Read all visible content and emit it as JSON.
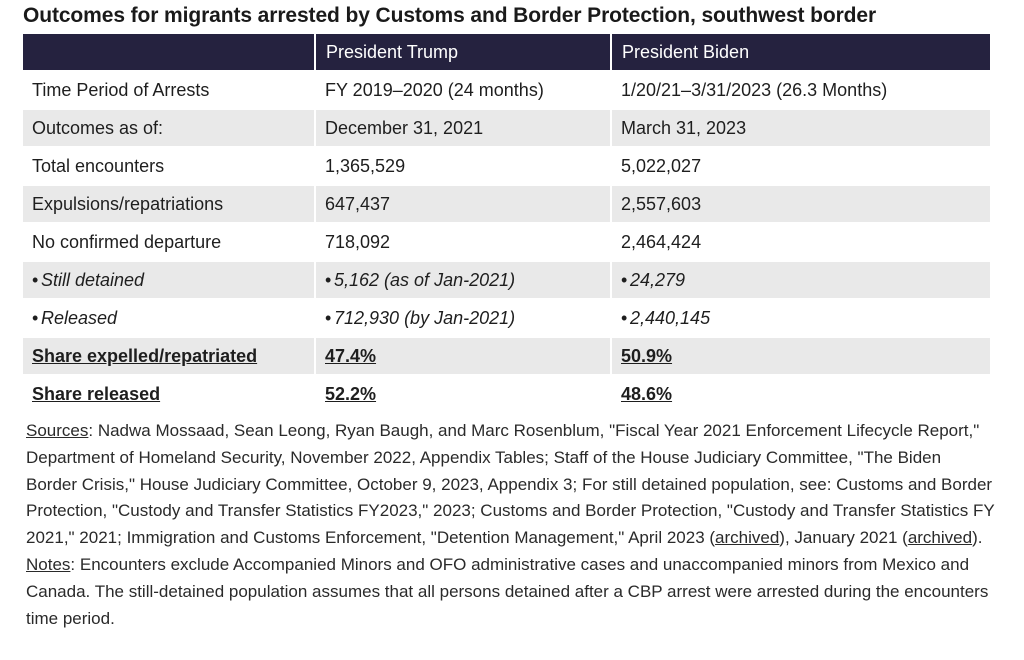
{
  "title": "Outcomes for migrants arrested by Customs and Border Protection, southwest border",
  "table": {
    "headers": [
      "",
      "President Trump",
      "President Biden"
    ],
    "rows": [
      {
        "label": "Time Period of Arrests",
        "trump": "FY 2019–2020 (24 months)",
        "biden": "1/20/21–3/31/2023 (26.3 Months)"
      },
      {
        "label": "Outcomes as of:",
        "trump": "December 31, 2021",
        "biden": "March 31, 2023"
      },
      {
        "label": "Total encounters",
        "trump": "1,365,529",
        "biden": "5,022,027"
      },
      {
        "label": "Expulsions/repatriations",
        "trump": "647,437",
        "biden": "2,557,603"
      },
      {
        "label": "No confirmed departure",
        "trump": "718,092",
        "biden": "2,464,424"
      },
      {
        "label": "Still detained",
        "trump": "5,162 (as of Jan-2021)",
        "biden": "24,279"
      },
      {
        "label": "Released",
        "trump": "712,930 (by Jan-2021)",
        "biden": "2,440,145"
      },
      {
        "label": "Share expelled/repatriated",
        "trump": "47.4%",
        "biden": "50.9%"
      },
      {
        "label": "Share released",
        "trump": "52.2%",
        "biden": "48.6%"
      }
    ]
  },
  "sources": {
    "label": "Sources",
    "text1": ": Nadwa Mossaad, Sean Leong, Ryan Baugh, and Marc Rosenblum, \"Fiscal Year 2021 Enforcement Lifecycle Report,\" Department of Homeland Security, November 2022, Appendix Tables; Staff of the House Judiciary Committee, \"The Biden Border Crisis,\" House Judiciary Committee, October 9, 2023, Appendix 3; For still detained population, see: Customs and Border Protection, \"Custody and Transfer Statistics FY2023,\" 2023; Customs and Border Protection, \"Custody and Transfer Statistics FY 2021,\" 2021; Immigration and Customs Enforcement, \"Detention Management,\" April 2023 (",
    "link1": "archived",
    "text2": "), January 2021 (",
    "link2": "archived",
    "text3": ")."
  },
  "notes": {
    "label": "Notes",
    "text": ": Encounters exclude Accompanied Minors and OFO administrative cases and unaccompanied minors from Mexico and Canada. The still-detained population assumes that all persons detained after a CBP arrest were arrested during the encounters time period."
  },
  "chart_data": {
    "type": "table",
    "title": "Outcomes for migrants arrested by Customs and Border Protection, southwest border",
    "columns": [
      "",
      "President Trump",
      "President Biden"
    ],
    "rows": [
      [
        "Time Period of Arrests",
        "FY 2019–2020 (24 months)",
        "1/20/21–3/31/2023 (26.3 Months)"
      ],
      [
        "Outcomes as of:",
        "December 31, 2021",
        "March 31, 2023"
      ],
      [
        "Total encounters",
        "1,365,529",
        "5,022,027"
      ],
      [
        "Expulsions/repatriations",
        "647,437",
        "2,557,603"
      ],
      [
        "No confirmed departure",
        "718,092",
        "2,464,424"
      ],
      [
        "Still detained",
        "5,162 (as of Jan-2021)",
        "24,279"
      ],
      [
        "Released",
        "712,930 (by Jan-2021)",
        "2,440,145"
      ],
      [
        "Share expelled/repatriated",
        "47.4%",
        "50.9%"
      ],
      [
        "Share released",
        "52.2%",
        "48.6%"
      ]
    ]
  }
}
